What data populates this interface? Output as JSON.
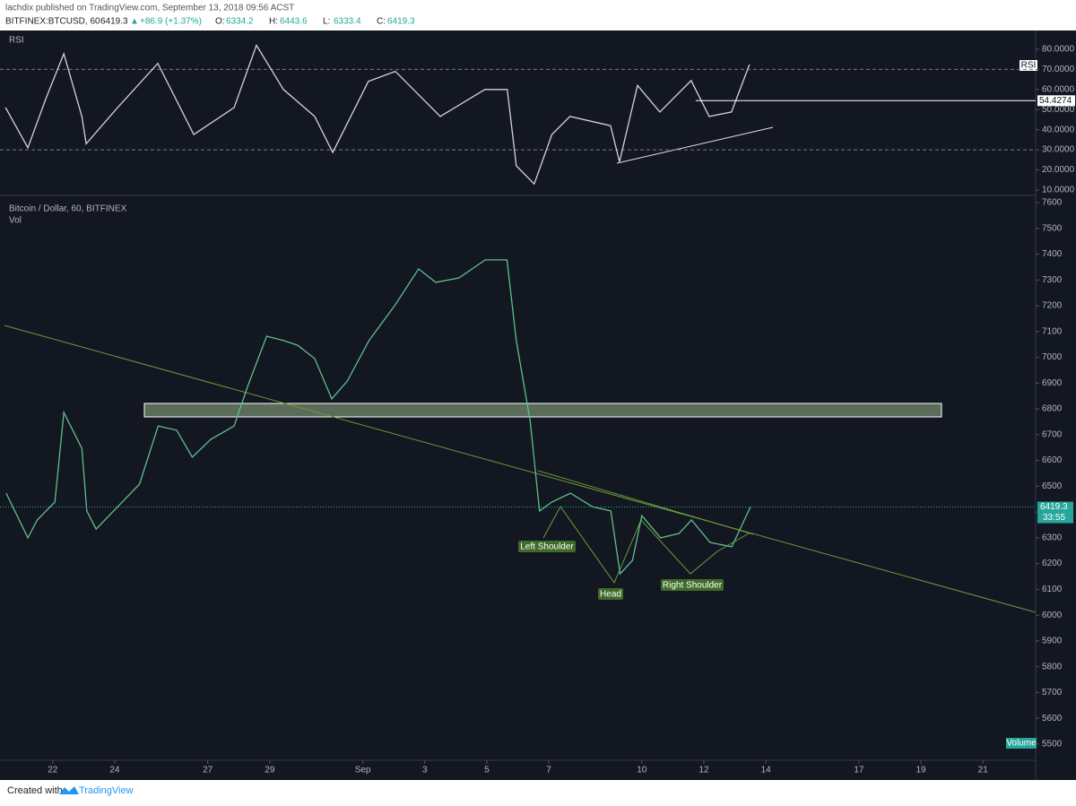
{
  "header": {
    "published": "lachdix published on TradingView.com, September 13, 2018 09:56 ACST",
    "symbol": "BITFINEX:BTCUSD, 60",
    "last": "6419.3",
    "change": "+86.9 (+1.37%)",
    "ohlc": [
      {
        "label": "O:",
        "value": "6334.2"
      },
      {
        "label": "H:",
        "value": "6443.6"
      },
      {
        "label": "L:",
        "value": "6333.4"
      },
      {
        "label": "C:",
        "value": "6419.3"
      }
    ]
  },
  "footer": {
    "created": "Created with",
    "brand": "TradingView"
  },
  "chart_data": [
    {
      "type": "line",
      "title": "RSI",
      "legend": "RSI",
      "color": "#d1d4dc",
      "x": [
        -0.52,
        0.2,
        0.78,
        1.36,
        1.94,
        2.08,
        3.09,
        4.39,
        5.55,
        6.85,
        7.57,
        8.44,
        9.45,
        10.03,
        11.18,
        12.05,
        13.5,
        14.94,
        15.66,
        15.95,
        16.53,
        17.1,
        17.68,
        18.99,
        19.28,
        19.86,
        20.58,
        21.59,
        22.17,
        22.89,
        23.47
      ],
      "values": [
        51,
        31,
        55.5,
        77.8,
        46.6,
        33,
        51,
        73,
        37.6,
        51,
        82,
        60,
        46.6,
        28.7,
        64,
        69,
        46.6,
        60,
        60,
        22,
        13,
        37.6,
        46.6,
        42,
        24,
        62,
        48.8,
        64.4,
        46.6,
        48.8,
        72.4
      ],
      "xlim": [
        -0.7,
        32.7
      ],
      "ylim": [
        7.3,
        88.9
      ],
      "yticks": [
        {
          "value": 10,
          "label": "10.0000"
        },
        {
          "value": 20,
          "label": "20.0000"
        },
        {
          "value": 30,
          "label": "30.0000"
        },
        {
          "value": 40,
          "label": "40.0000"
        },
        {
          "value": 50,
          "label": "50.0000"
        },
        {
          "value": 60,
          "label": "60.0000"
        },
        {
          "value": 70,
          "label": "70.0000"
        },
        {
          "value": 80,
          "label": "80.0000"
        }
      ],
      "bands": [
        70,
        30
      ],
      "level": 54.4274
    },
    {
      "type": "line",
      "title": "Bitcoin / Dollar, 60, BITFINEX",
      "subtitle": "Vol",
      "volume_label": "Volume",
      "color": "#5fbf8a",
      "x": [
        -0.5,
        0.2,
        0.5,
        1.07,
        1.36,
        1.94,
        2.1,
        2.4,
        3.1,
        3.8,
        4.4,
        5.0,
        5.5,
        6.1,
        6.85,
        7.3,
        7.9,
        8.45,
        8.9,
        9.45,
        10.0,
        10.5,
        11.2,
        12.05,
        12.8,
        13.35,
        14.1,
        14.95,
        15.65,
        15.95,
        16.4,
        16.7,
        17.1,
        17.7,
        18.4,
        19.0,
        19.3,
        19.7,
        20.0,
        20.6,
        21.2,
        21.6,
        22.2,
        22.9,
        23.5
      ],
      "values": [
        6473,
        6300,
        6369,
        6439,
        6786,
        6647,
        6404,
        6334,
        6421,
        6508,
        6734,
        6717,
        6613,
        6682,
        6734,
        6891,
        7082,
        7065,
        7047,
        6995,
        6839,
        6908,
        7065,
        7204,
        7343,
        7291,
        7308,
        7378,
        7378,
        7065,
        6752,
        6404,
        6439,
        6473,
        6421,
        6404,
        6160,
        6213,
        6386,
        6300,
        6317,
        6369,
        6282,
        6265,
        6419.3
      ],
      "xlim": [
        -0.7,
        32.7
      ],
      "ylim": [
        5437,
        7628
      ],
      "yticks": [
        5500,
        5600,
        5700,
        5800,
        5900,
        6000,
        6100,
        6200,
        6300,
        6400,
        6500,
        6600,
        6700,
        6800,
        6900,
        7000,
        7100,
        7200,
        7300,
        7400,
        7500,
        7600
      ],
      "xticks": [
        {
          "value": 1,
          "label": "22"
        },
        {
          "value": 3,
          "label": "24"
        },
        {
          "value": 6,
          "label": "27"
        },
        {
          "value": 8,
          "label": "29"
        },
        {
          "value": 11,
          "label": "Sep"
        },
        {
          "value": 13,
          "label": "3"
        },
        {
          "value": 15,
          "label": "5"
        },
        {
          "value": 17,
          "label": "7"
        },
        {
          "value": 20,
          "label": "10"
        },
        {
          "value": 22,
          "label": "12"
        },
        {
          "value": 24,
          "label": "14"
        },
        {
          "value": 27,
          "label": "17"
        },
        {
          "value": 29,
          "label": "19"
        },
        {
          "value": 31,
          "label": "21"
        }
      ],
      "last_price": 6419.3,
      "countdown": "33:55",
      "annotations": [
        "Left Shoulder",
        "Head",
        "Right Shoulder"
      ]
    }
  ]
}
